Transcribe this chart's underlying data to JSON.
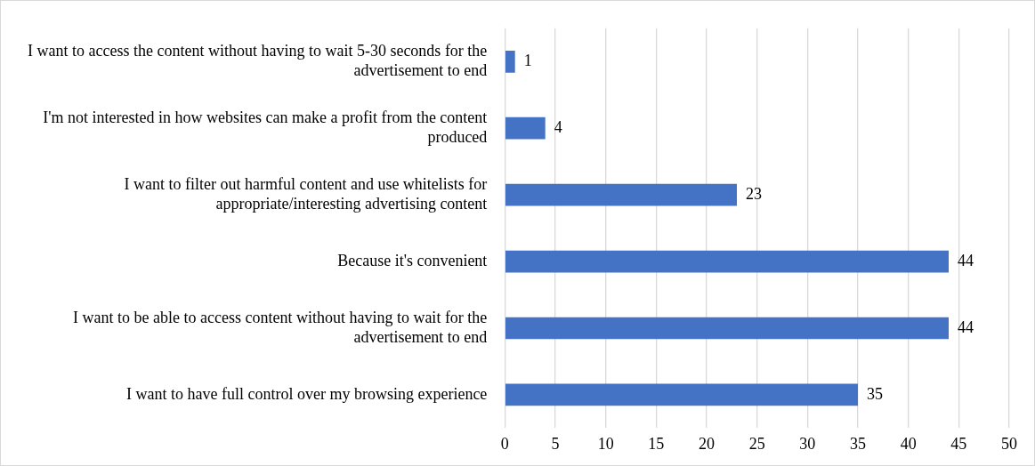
{
  "chart_data": {
    "type": "bar",
    "orientation": "horizontal",
    "categories": [
      "I want to access the content without having to wait 5-30 seconds for the advertisement to end",
      "I'm not interested in how websites can make a profit from the content produced",
      "I want to filter out harmful content and use whitelists for appropriate/interesting advertising content",
      "Because it's convenient",
      "I want to be able to access content without having to wait for the advertisement to end",
      "I want to have full control over my browsing experience"
    ],
    "values": [
      1,
      4,
      23,
      44,
      44,
      35
    ],
    "color": "#4472c4",
    "xlim": [
      0,
      50
    ],
    "xticks": [
      0,
      5,
      10,
      15,
      20,
      25,
      30,
      35,
      40,
      45,
      50
    ],
    "grid": "x",
    "data_labels": true
  }
}
